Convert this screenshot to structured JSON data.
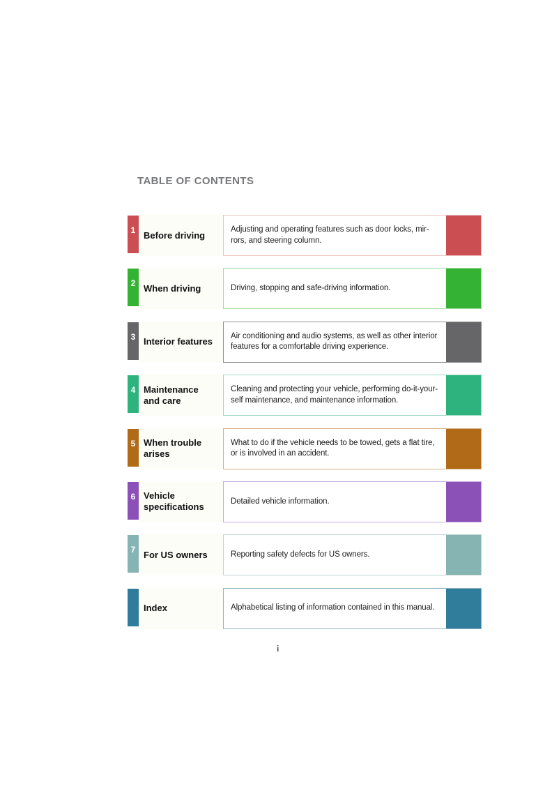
{
  "page": {
    "title": "TABLE OF CONTENTS",
    "page_number": "i"
  },
  "toc": {
    "rows": [
      {
        "number": "1",
        "label": "Before driving",
        "description": "Adjusting and operating features such as door locks, mir-\nrors, and steering column.",
        "color": "#cb4e53",
        "border_color": "#eec2c3"
      },
      {
        "number": "2",
        "label": "When driving",
        "description": "Driving, stopping and safe-driving information.",
        "color": "#33b233",
        "border_color": "#a6dba6"
      },
      {
        "number": "3",
        "label": "Interior features",
        "description": "Air conditioning and audio systems, as well as other interior\nfeatures for a comfortable driving experience.",
        "color": "#666668",
        "border_color": "#8f9090"
      },
      {
        "number": "4",
        "label": "Maintenance\nand care",
        "description": "Cleaning and protecting your vehicle, performing do-it-your-\nself maintenance, and maintenance information.",
        "color": "#2eb37f",
        "border_color": "#9ed9c2"
      },
      {
        "number": "5",
        "label": "When trouble\narises",
        "description": "What to do if the vehicle needs to be towed, gets a flat tire,\nor is involved in an accident.",
        "color": "#b16a17",
        "border_color": "#d9af7c"
      },
      {
        "number": "6",
        "label": "Vehicle\nspecifications",
        "description": "Detailed vehicle information.",
        "color": "#8b51b6",
        "border_color": "#c6abdd"
      },
      {
        "number": "7",
        "label": "For US owners",
        "description": "Reporting safety defects for US owners.",
        "color": "#86b4b2",
        "border_color": "#bfd6d5"
      },
      {
        "number": "",
        "label": "Index",
        "description": "Alphabetical listing of information contained in this manual.",
        "color": "#307d9b",
        "border_color": "#8fb3c4"
      }
    ]
  }
}
